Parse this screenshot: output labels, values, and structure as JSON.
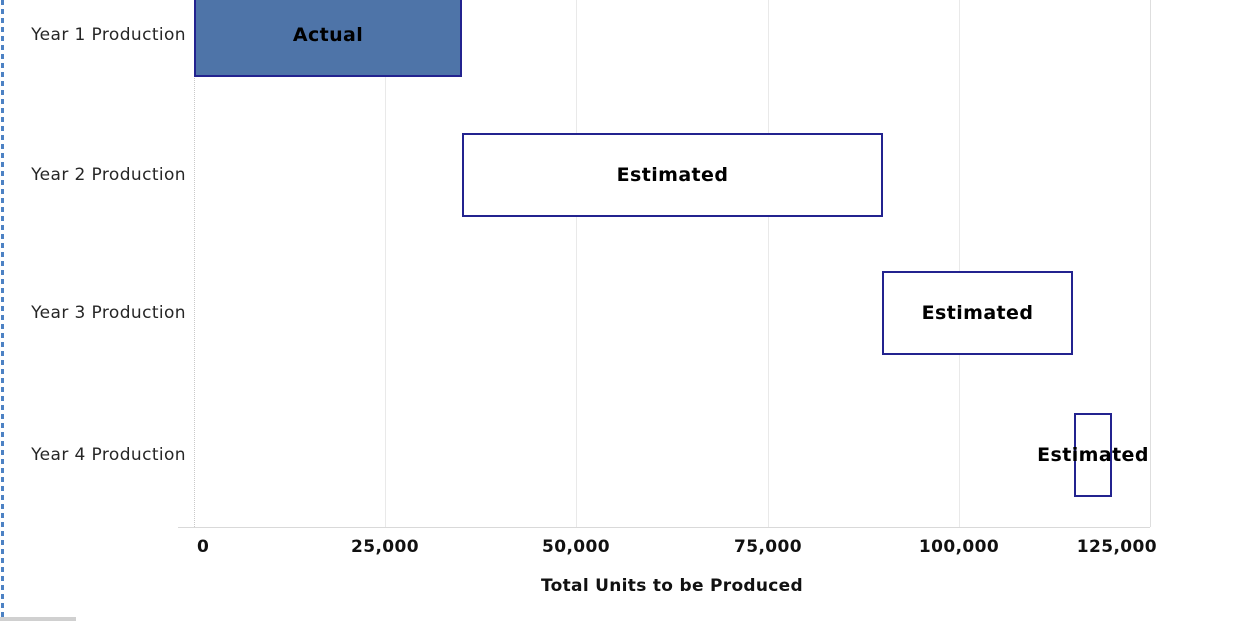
{
  "page": {
    "background": "#ffffff"
  },
  "chart_data": {
    "type": "bar",
    "subtype": "waterfall",
    "orientation": "horizontal",
    "title": "",
    "xlabel": "Total Units to be Produced",
    "ylabel": "",
    "xlim": [
      0,
      125000
    ],
    "grid": "vertical",
    "legend": "none",
    "categories": [
      "Year 1 Production",
      "Year 2 Production",
      "Year 3 Production",
      "Year 4 Production"
    ],
    "x_ticks": [
      0,
      25000,
      50000,
      75000,
      100000,
      125000
    ],
    "x_tick_labels": [
      "0",
      "25,000",
      "50,000",
      "75,000",
      "100,000",
      "125,000"
    ],
    "bars": [
      {
        "category": "Year 1 Production",
        "label": "Actual",
        "start": 0,
        "end": 35000,
        "units": 35000,
        "style": "filled"
      },
      {
        "category": "Year 2 Production",
        "label": "Estimated",
        "start": 35000,
        "end": 90000,
        "units": 55000,
        "style": "outlined"
      },
      {
        "category": "Year 3 Production",
        "label": "Estimated",
        "start": 90000,
        "end": 115000,
        "units": 25000,
        "style": "outlined"
      },
      {
        "category": "Year 4 Production",
        "label": "Estimated",
        "start": 115000,
        "end": 120000,
        "units": 5000,
        "style": "outlined"
      }
    ],
    "colors": {
      "actual_fill": "#4e74a8",
      "bar_border": "#23238f",
      "gridline": "#e9e9e9",
      "axis_line": "#d9d9d9",
      "selection_dash": "#4d82c4"
    }
  }
}
